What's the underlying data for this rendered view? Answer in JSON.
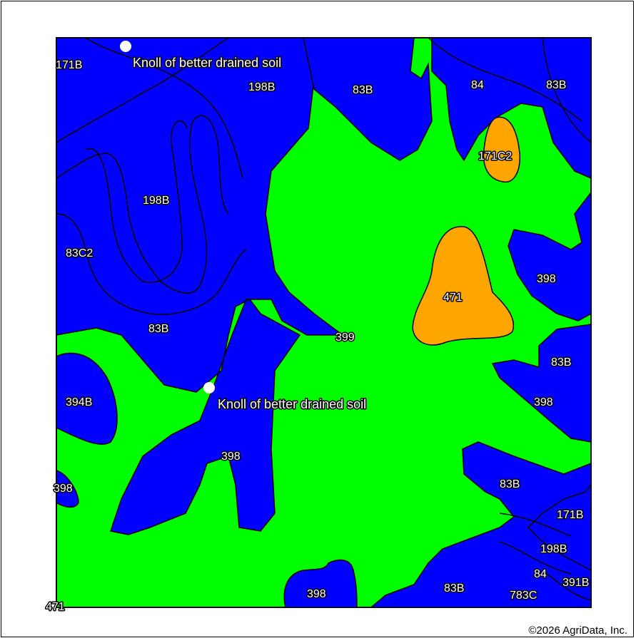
{
  "colors": {
    "dry": "#0000ff",
    "wet": "#00ff00",
    "sloped": "#ffa500",
    "line": "#000000"
  },
  "map_units": {
    "u1": "171B",
    "u2": "198B",
    "u3": "83B",
    "u4": "84",
    "u5": "83B",
    "u6": "171C2",
    "u7": "198B",
    "u8": "83C2",
    "u9": "398",
    "u10": "471",
    "u11": "83B",
    "u12": "399",
    "u13": "83B",
    "u14": "394B",
    "u15": "398",
    "u16": "398",
    "u17": "398",
    "u18": "83B",
    "u19": "171B",
    "u20": "198B",
    "u21": "84",
    "u22": "391B",
    "u23": "783C",
    "u24": "83B",
    "u25": "398",
    "u26": "471"
  },
  "notes": {
    "n1": "Knoll of better drained soil",
    "n2": "Knoll of better drained soil"
  },
  "copyright": "©2026 AgriData, Inc."
}
